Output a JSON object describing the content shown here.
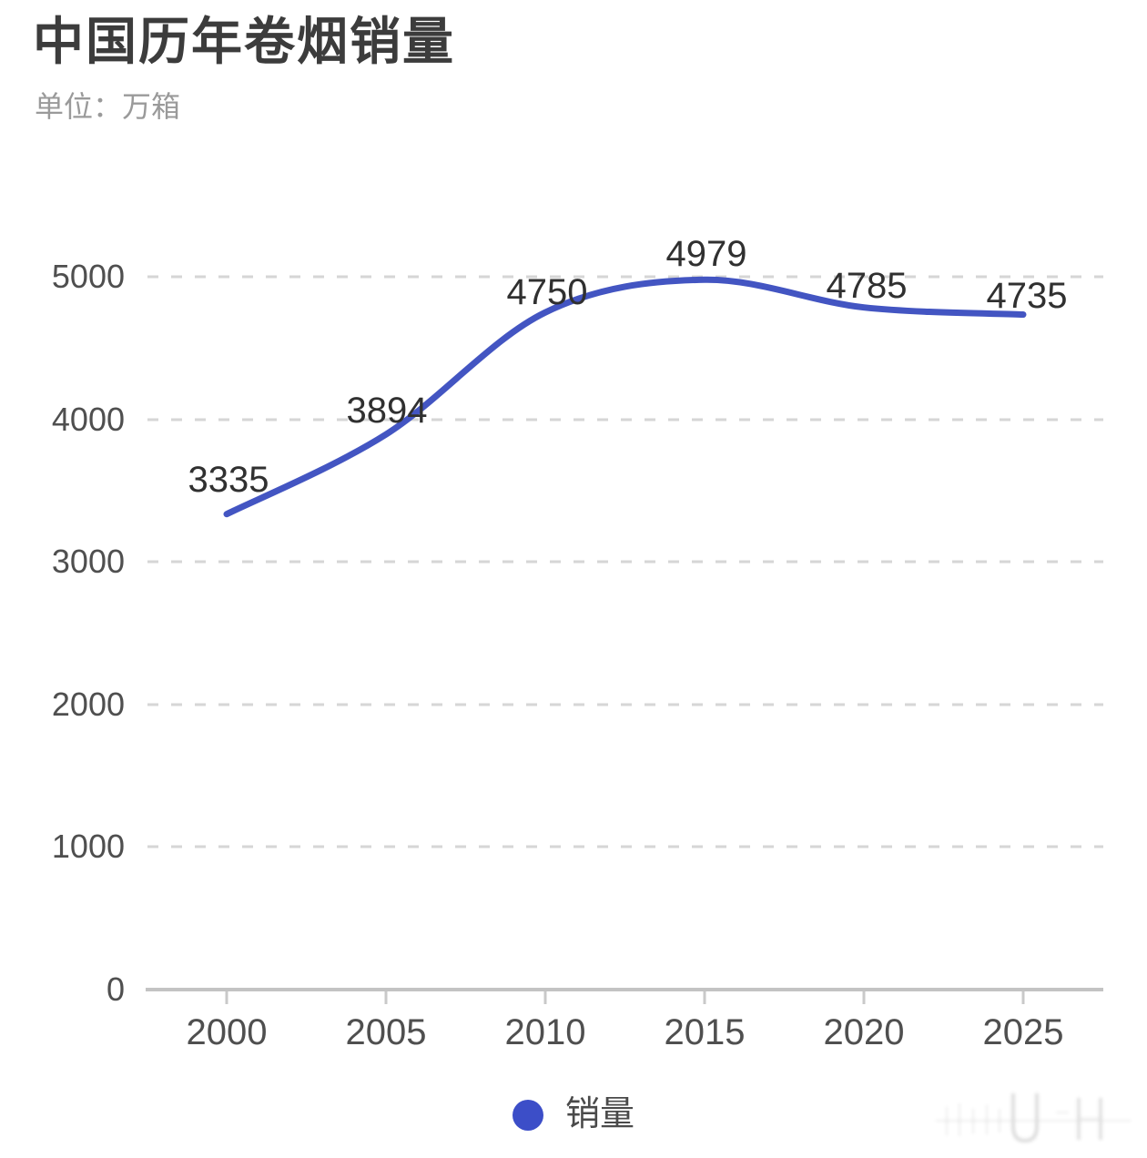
{
  "header": {
    "title": "中国历年卷烟销量",
    "unit_label": "单位：万箱"
  },
  "chart_data": {
    "type": "line",
    "title": "中国历年卷烟销量",
    "unit": "万箱",
    "categories": [
      "2000",
      "2005",
      "2010",
      "2015",
      "2020",
      "2025"
    ],
    "series": [
      {
        "name": "销量",
        "values": [
          3335,
          3894,
          4750,
          4979,
          4785,
          4735
        ],
        "color": "#4355c2",
        "style": "smooth"
      }
    ],
    "xlabel": "",
    "ylabel": "",
    "ylim": [
      0,
      5000
    ],
    "yticks": [
      "5000",
      "4000",
      "3000",
      "2000",
      "1000",
      "0"
    ],
    "grid": "horizontal-dashed",
    "legend_position": "bottom",
    "colors": {
      "line": "#4355c2",
      "legend_dot": "#3c4ec8",
      "gridline": "#d6d6d6",
      "axis_line": "#c3c3c3",
      "title_text": "#3c3c3c",
      "subtitle_text": "#9a9a9a",
      "axis_text": "#4f4f4f",
      "data_label_text": "#303030",
      "background": "#ffffff"
    }
  }
}
